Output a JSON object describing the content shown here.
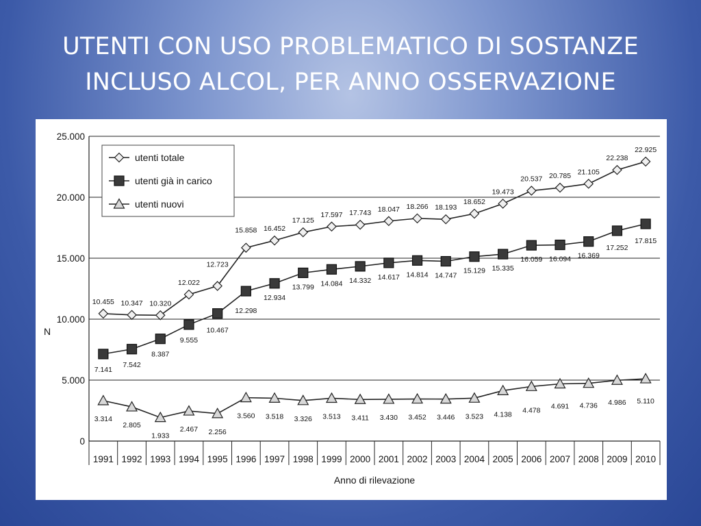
{
  "slide": {
    "title_line1": "UTENTI CON USO PROBLEMATICO DI SOSTANZE",
    "title_line2": "INCLUSO ALCOL, PER ANNO OSSERVAZIONE"
  },
  "chart_data": {
    "type": "line",
    "title": "UTENTI CON USO PROBLEMATICO DI SOSTANZE INCLUSO ALCOL, PER ANNO OSSERVAZIONE",
    "xlabel": "Anno di rilevazione",
    "ylabel": "N",
    "ylim": [
      0,
      25000
    ],
    "yticks": [
      0,
      5000,
      10000,
      15000,
      20000,
      25000
    ],
    "ytick_labels": [
      "0",
      "5.000",
      "10.000",
      "15.000",
      "20.000",
      "25.000"
    ],
    "grid": "horizontal",
    "legend_position": "top-left",
    "x": [
      "1991",
      "1992",
      "1993",
      "1994",
      "1995",
      "1996",
      "1997",
      "1998",
      "1999",
      "2000",
      "2001",
      "2002",
      "2003",
      "2004",
      "2005",
      "2006",
      "2007",
      "2008",
      "2009",
      "2010"
    ],
    "series": [
      {
        "name": "utenti totale",
        "marker": "diamond",
        "marker_color": "#f0f0f0",
        "values": [
          10455,
          10347,
          10320,
          12022,
          12723,
          15858,
          16452,
          17125,
          17597,
          17743,
          18047,
          18266,
          18193,
          18652,
          19473,
          20537,
          20785,
          21105,
          22238,
          22925
        ],
        "labels": [
          "10.455",
          "10.347",
          "10.320",
          "12.022",
          "12.723",
          "15.858",
          "16.452",
          "17.125",
          "17.597",
          "17.743",
          "18.047",
          "18.266",
          "18.193",
          "18.652",
          "19.473",
          "20.537",
          "20.785",
          "21.105",
          "22.238",
          "22.925"
        ]
      },
      {
        "name": "utenti già in carico",
        "marker": "square",
        "marker_color": "#3a3a3a",
        "values": [
          7141,
          7542,
          8387,
          9555,
          10467,
          12298,
          12934,
          13799,
          14084,
          14332,
          14617,
          14814,
          14747,
          15129,
          15335,
          16059,
          16094,
          16369,
          17252,
          17815
        ],
        "labels": [
          "7.141",
          "7.542",
          "8.387",
          "9.555",
          "10.467",
          "12.298",
          "12.934",
          "13.799",
          "14.084",
          "14.332",
          "14.617",
          "14.814",
          "14.747",
          "15.129",
          "15.335",
          "16.059",
          "16.094",
          "16.369",
          "17.252",
          "17.815"
        ]
      },
      {
        "name": "utenti nuovi",
        "marker": "triangle",
        "marker_color": "#d8d8d8",
        "values": [
          3314,
          2805,
          1933,
          2467,
          2256,
          3560,
          3518,
          3326,
          3513,
          3411,
          3430,
          3452,
          3446,
          3523,
          4138,
          4478,
          4691,
          4736,
          4986,
          5110
        ],
        "labels": [
          "3.314",
          "2.805",
          "1.933",
          "2.467",
          "2.256",
          "3.560",
          "3.518",
          "3.326",
          "3.513",
          "3.411",
          "3.430",
          "3.452",
          "3.446",
          "3.523",
          "4.138",
          "4.478",
          "4.691",
          "4.736",
          "4.986",
          "5.110"
        ]
      }
    ]
  }
}
